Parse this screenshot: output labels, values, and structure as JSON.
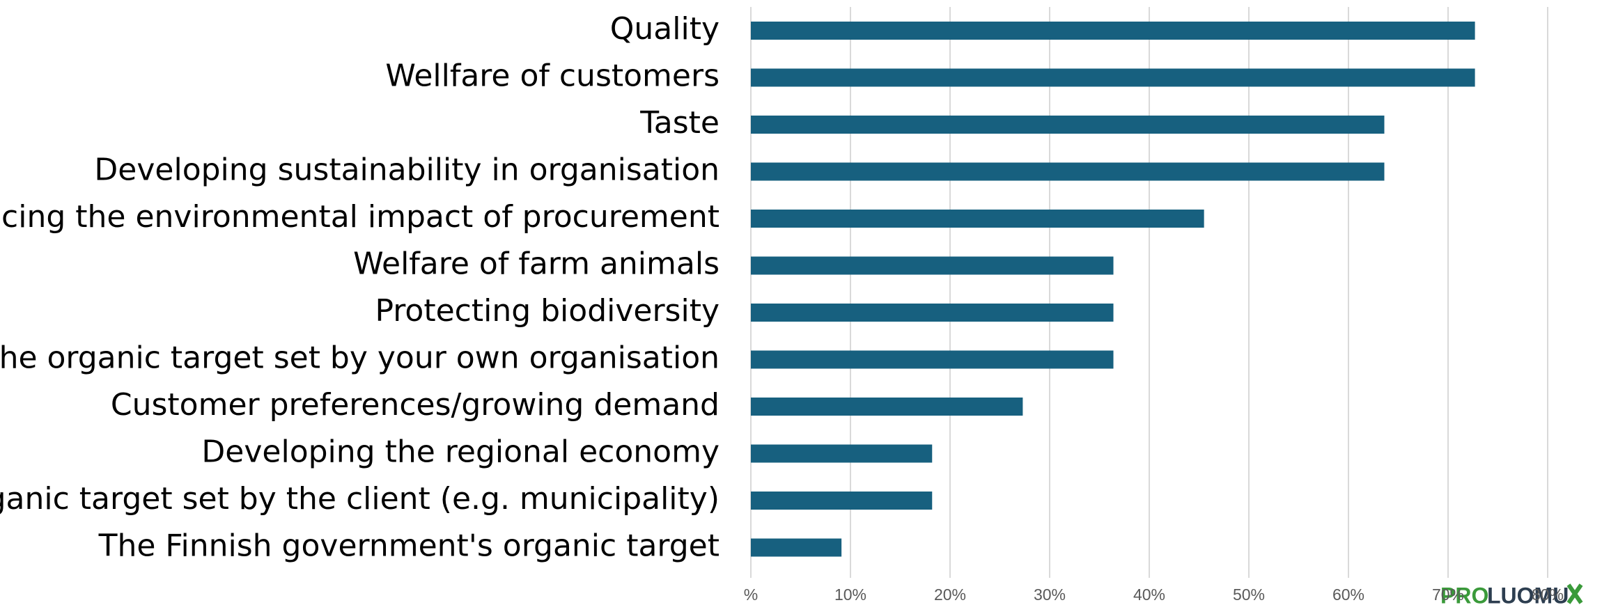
{
  "chart_data": {
    "type": "bar",
    "orientation": "horizontal",
    "categories": [
      "Quality",
      "Wellfare of customers",
      "Taste",
      "Developing sustainability in organisation",
      "Reducing the environmental impact of procurement",
      "Welfare of farm animals",
      "Protecting biodiversity",
      "The organic target set by your own organisation",
      "Customer preferences/growing demand",
      "Developing the regional economy",
      "Organic target set by the client (e.g. municipality)",
      "The Finnish government's organic target"
    ],
    "values": [
      72.7,
      72.7,
      63.6,
      63.6,
      45.5,
      36.4,
      36.4,
      36.4,
      27.3,
      18.2,
      18.2,
      9.1
    ],
    "color": "#17607f",
    "xlim": [
      0,
      80
    ],
    "xticks": [
      {
        "value": 0,
        "label": "%"
      },
      {
        "value": 10,
        "label": "10%"
      },
      {
        "value": 20,
        "label": "20%"
      },
      {
        "value": 30,
        "label": "30%"
      },
      {
        "value": 40,
        "label": "40%"
      },
      {
        "value": 50,
        "label": "50%"
      },
      {
        "value": 60,
        "label": "60%"
      },
      {
        "value": 70,
        "label": "70%"
      },
      {
        "value": 80,
        "label": "80%"
      }
    ],
    "grid": true
  },
  "logo": {
    "part1": "PRO",
    "part2": "LUOMU"
  }
}
